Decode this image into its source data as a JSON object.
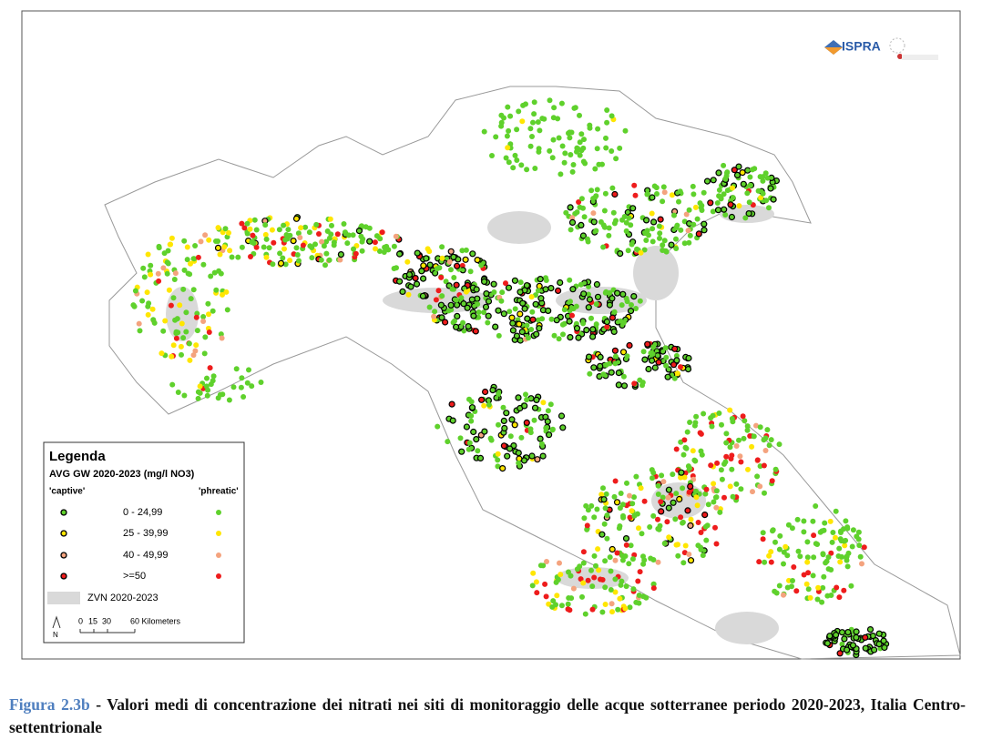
{
  "logo": {
    "name": "ISPRA"
  },
  "legend": {
    "title": "Legenda",
    "subtitle": "AVG GW 2020-2023 (mg/l NO3)",
    "captive": "'captive'",
    "phreatic": "'phreatic'",
    "classes": [
      {
        "label": "0 - 24,99",
        "color": "#5fd12c"
      },
      {
        "label": "25 - 39,99",
        "color": "#ffe600"
      },
      {
        "label": "40 - 49,99",
        "color": "#f4a37e"
      },
      {
        "label": ">=50",
        "color": "#ee1c1c"
      }
    ],
    "zone": {
      "label": "ZVN 2020-2023",
      "color": "#d9d9d9"
    },
    "north": "N",
    "scale": [
      "0",
      "15",
      "30",
      "60 Kilometers"
    ]
  },
  "caption": {
    "label": "Figura 2.3b",
    "text": "- Valori medi di concentrazione dei nitrati nei siti di monitoraggio delle acque sotterranee periodo 2020-2023, Italia Centro-settentrionale"
  }
}
